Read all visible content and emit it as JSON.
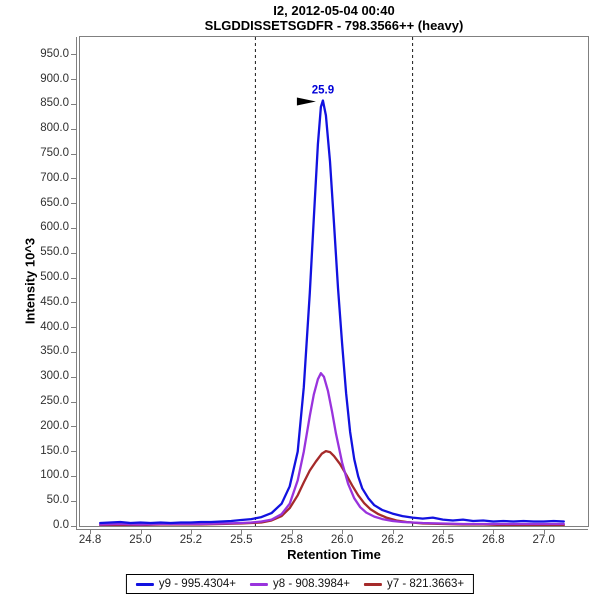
{
  "chart_data": {
    "type": "line",
    "title": "I2, 2012-05-04 00:40",
    "subtitle": "SLGDDISSETSGDFR - 798.3566++ (heavy)",
    "xlabel": "Retention Time",
    "ylabel": "Intensity 10^3",
    "intensity_units": "10^3",
    "xlim": [
      24.7,
      27.22
    ],
    "ylim": [
      0,
      986
    ],
    "grid": false,
    "legend_position": "bottom-center",
    "xticks": [
      {
        "value": 24.75,
        "label": "24.8"
      },
      {
        "value": 25.0,
        "label": "25.0"
      },
      {
        "value": 25.25,
        "label": "25.2"
      },
      {
        "value": 25.5,
        "label": "25.5"
      },
      {
        "value": 25.75,
        "label": "25.8"
      },
      {
        "value": 26.0,
        "label": "26.0"
      },
      {
        "value": 26.25,
        "label": "26.2"
      },
      {
        "value": 26.5,
        "label": "26.5"
      },
      {
        "value": 26.75,
        "label": "26.8"
      },
      {
        "value": 27.0,
        "label": "27.0"
      }
    ],
    "yticks": [
      {
        "value": 0,
        "label": "0.0"
      },
      {
        "value": 50,
        "label": "50.0"
      },
      {
        "value": 100,
        "label": "100.0"
      },
      {
        "value": 150,
        "label": "150.0"
      },
      {
        "value": 200,
        "label": "200.0"
      },
      {
        "value": 250,
        "label": "250.0"
      },
      {
        "value": 300,
        "label": "300.0"
      },
      {
        "value": 350,
        "label": "350.0"
      },
      {
        "value": 400,
        "label": "400.0"
      },
      {
        "value": 450,
        "label": "450.0"
      },
      {
        "value": 500,
        "label": "500.0"
      },
      {
        "value": 550,
        "label": "550.0"
      },
      {
        "value": 600,
        "label": "600.0"
      },
      {
        "value": 650,
        "label": "650.0"
      },
      {
        "value": 700,
        "label": "700.0"
      },
      {
        "value": 750,
        "label": "750.0"
      },
      {
        "value": 800,
        "label": "800.0"
      },
      {
        "value": 850,
        "label": "850.0"
      },
      {
        "value": 900,
        "label": "900.0"
      },
      {
        "value": 950,
        "label": "950.0"
      }
    ],
    "peak_boundaries": {
      "values": [
        25.57,
        26.35
      ],
      "color": "#1a1a1a",
      "style": "dashed"
    },
    "peak_annotation": {
      "label": "25.9",
      "rt": 25.905,
      "intensity": 858,
      "color": "#0000d8",
      "arrow_color": "#000000"
    },
    "series": [
      {
        "name": "y9 - 995.4304+",
        "color": "#1212e0",
        "points": [
          [
            24.8,
            6
          ],
          [
            24.85,
            7
          ],
          [
            24.9,
            8
          ],
          [
            24.95,
            6
          ],
          [
            25.0,
            7
          ],
          [
            25.05,
            6
          ],
          [
            25.1,
            7
          ],
          [
            25.15,
            6
          ],
          [
            25.2,
            7
          ],
          [
            25.25,
            7
          ],
          [
            25.3,
            8
          ],
          [
            25.35,
            8
          ],
          [
            25.4,
            9
          ],
          [
            25.45,
            10
          ],
          [
            25.5,
            12
          ],
          [
            25.55,
            14
          ],
          [
            25.6,
            18
          ],
          [
            25.65,
            26
          ],
          [
            25.7,
            45
          ],
          [
            25.74,
            80
          ],
          [
            25.78,
            150
          ],
          [
            25.81,
            280
          ],
          [
            25.84,
            470
          ],
          [
            25.86,
            620
          ],
          [
            25.88,
            770
          ],
          [
            25.895,
            845
          ],
          [
            25.905,
            858
          ],
          [
            25.92,
            828
          ],
          [
            25.94,
            735
          ],
          [
            25.96,
            610
          ],
          [
            25.98,
            480
          ],
          [
            26.0,
            368
          ],
          [
            26.02,
            268
          ],
          [
            26.04,
            190
          ],
          [
            26.06,
            135
          ],
          [
            26.08,
            100
          ],
          [
            26.1,
            76
          ],
          [
            26.13,
            56
          ],
          [
            26.16,
            42
          ],
          [
            26.2,
            32
          ],
          [
            26.25,
            25
          ],
          [
            26.3,
            20
          ],
          [
            26.35,
            17
          ],
          [
            26.4,
            15
          ],
          [
            26.45,
            17
          ],
          [
            26.5,
            13
          ],
          [
            26.55,
            11
          ],
          [
            26.6,
            13
          ],
          [
            26.65,
            10
          ],
          [
            26.7,
            11
          ],
          [
            26.75,
            9
          ],
          [
            26.8,
            10
          ],
          [
            26.85,
            9
          ],
          [
            26.9,
            10
          ],
          [
            26.95,
            9
          ],
          [
            27.0,
            9
          ],
          [
            27.05,
            10
          ],
          [
            27.1,
            9
          ]
        ]
      },
      {
        "name": "y8 - 908.3984+",
        "color": "#9933dd",
        "points": [
          [
            24.8,
            3
          ],
          [
            24.9,
            4
          ],
          [
            25.0,
            3
          ],
          [
            25.1,
            4
          ],
          [
            25.2,
            4
          ],
          [
            25.3,
            4
          ],
          [
            25.4,
            5
          ],
          [
            25.5,
            6
          ],
          [
            25.55,
            7
          ],
          [
            25.6,
            9
          ],
          [
            25.65,
            13
          ],
          [
            25.7,
            24
          ],
          [
            25.74,
            45
          ],
          [
            25.78,
            92
          ],
          [
            25.81,
            150
          ],
          [
            25.84,
            222
          ],
          [
            25.86,
            265
          ],
          [
            25.88,
            296
          ],
          [
            25.895,
            308
          ],
          [
            25.91,
            301
          ],
          [
            25.93,
            272
          ],
          [
            25.95,
            231
          ],
          [
            25.97,
            186
          ],
          [
            26.0,
            128
          ],
          [
            26.03,
            85
          ],
          [
            26.06,
            56
          ],
          [
            26.09,
            38
          ],
          [
            26.12,
            27
          ],
          [
            26.16,
            19
          ],
          [
            26.2,
            14
          ],
          [
            26.25,
            10
          ],
          [
            26.3,
            8
          ],
          [
            26.4,
            6
          ],
          [
            26.5,
            5
          ],
          [
            26.6,
            4
          ],
          [
            26.7,
            4
          ],
          [
            26.8,
            4
          ],
          [
            26.9,
            4
          ],
          [
            27.0,
            4
          ],
          [
            27.1,
            4
          ]
        ]
      },
      {
        "name": "y7 - 821.3663+",
        "color": "#a52a2a",
        "points": [
          [
            24.8,
            2
          ],
          [
            24.9,
            2
          ],
          [
            25.0,
            2
          ],
          [
            25.1,
            3
          ],
          [
            25.2,
            3
          ],
          [
            25.3,
            3
          ],
          [
            25.4,
            4
          ],
          [
            25.5,
            5
          ],
          [
            25.55,
            6
          ],
          [
            25.6,
            7
          ],
          [
            25.65,
            11
          ],
          [
            25.7,
            20
          ],
          [
            25.74,
            36
          ],
          [
            25.78,
            62
          ],
          [
            25.81,
            88
          ],
          [
            25.84,
            112
          ],
          [
            25.87,
            130
          ],
          [
            25.9,
            146
          ],
          [
            25.92,
            151
          ],
          [
            25.94,
            149
          ],
          [
            25.96,
            141
          ],
          [
            25.99,
            125
          ],
          [
            26.02,
            104
          ],
          [
            26.05,
            82
          ],
          [
            26.08,
            62
          ],
          [
            26.11,
            46
          ],
          [
            26.14,
            34
          ],
          [
            26.18,
            24
          ],
          [
            26.22,
            17
          ],
          [
            26.27,
            11
          ],
          [
            26.32,
            8
          ],
          [
            26.4,
            5
          ],
          [
            26.5,
            4
          ],
          [
            26.6,
            3
          ],
          [
            26.7,
            3
          ],
          [
            26.8,
            2
          ],
          [
            26.9,
            2
          ],
          [
            27.0,
            2
          ],
          [
            27.1,
            2
          ]
        ]
      }
    ]
  }
}
